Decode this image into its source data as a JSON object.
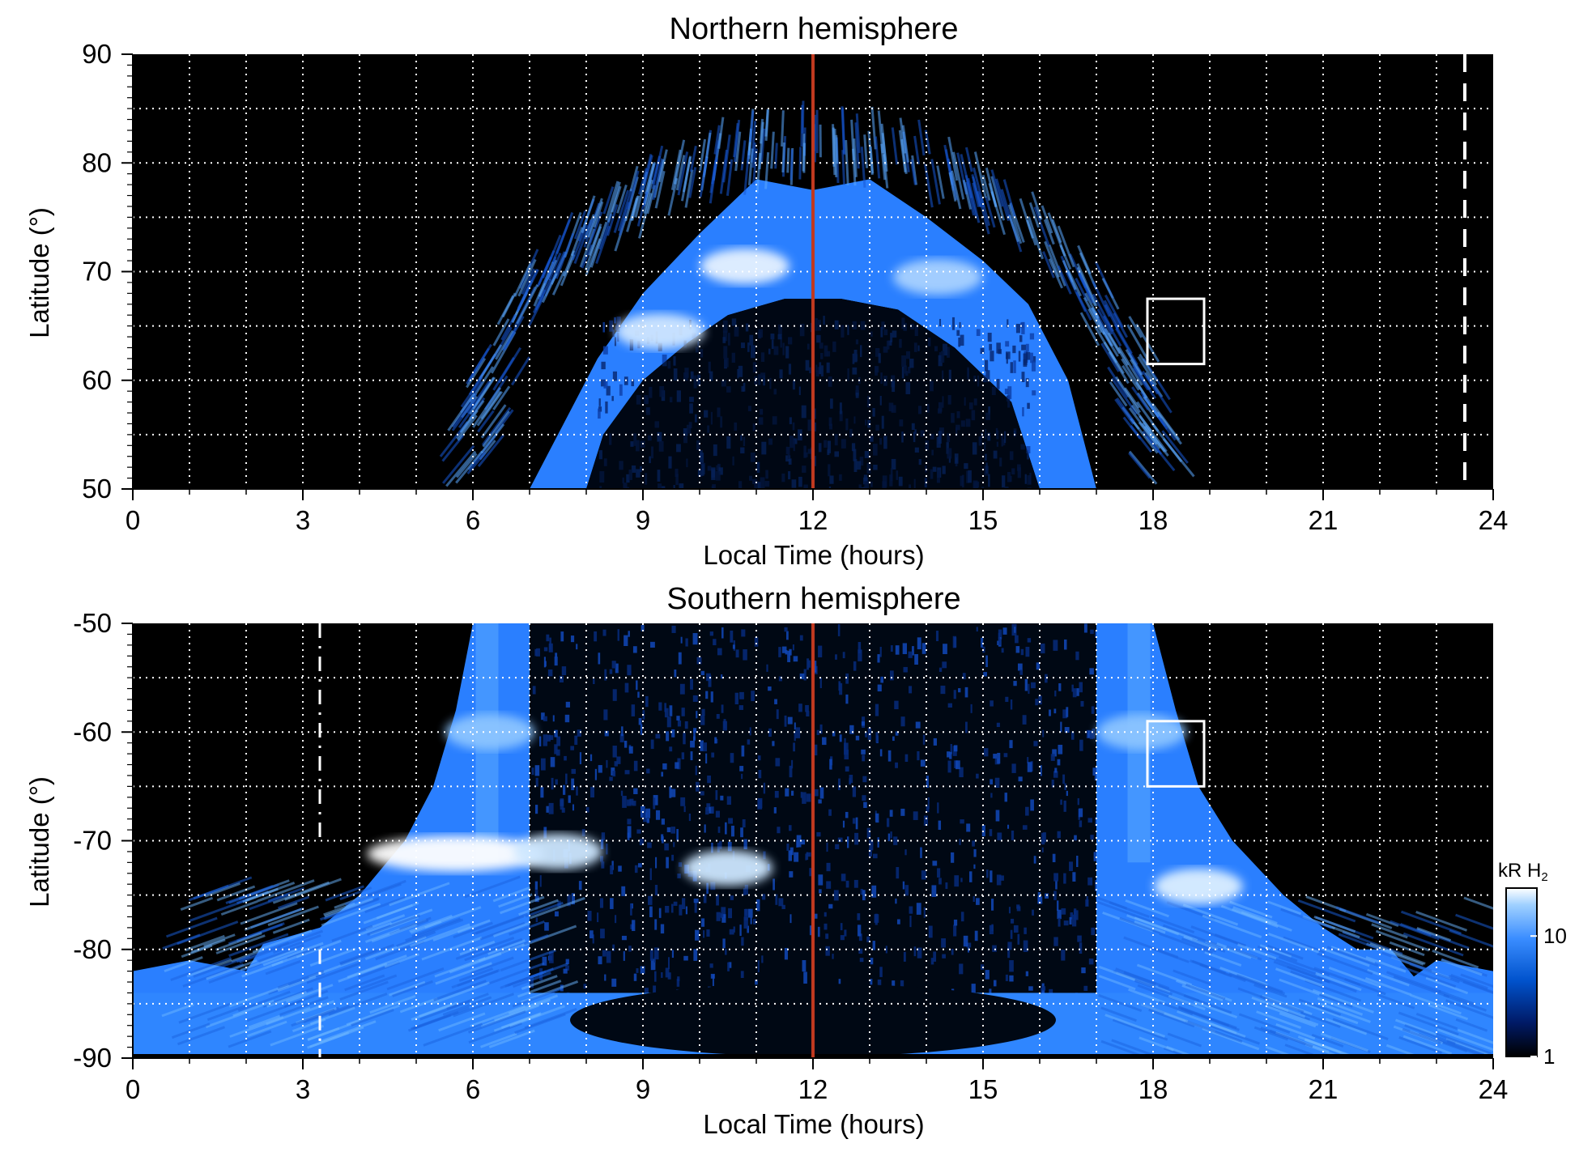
{
  "chart_data": [
    {
      "type": "heatmap",
      "title": "Northern hemisphere",
      "xlabel": "Local Time (hours)",
      "ylabel": "Latitude (°)",
      "xlim": [
        0,
        24
      ],
      "ylim": [
        50,
        90
      ],
      "xticks": [
        "0",
        "3",
        "6",
        "9",
        "12",
        "15",
        "18",
        "21",
        "24"
      ],
      "yticks": [
        "50",
        "60",
        "70",
        "80",
        "90"
      ],
      "grid": true,
      "aurora": {
        "outer_boundary": [
          [
            7.0,
            50
          ],
          [
            7.5,
            55
          ],
          [
            8.2,
            62
          ],
          [
            9.0,
            68
          ],
          [
            10.0,
            73.5
          ],
          [
            11.0,
            78.5
          ],
          [
            12.0,
            77.5
          ],
          [
            13.0,
            78.5
          ],
          [
            14.0,
            75
          ],
          [
            15.0,
            71
          ],
          [
            15.8,
            67
          ],
          [
            16.5,
            60
          ],
          [
            17.0,
            50
          ]
        ],
        "inner_boundary": [
          [
            8.0,
            50
          ],
          [
            8.3,
            55
          ],
          [
            9.0,
            60
          ],
          [
            9.8,
            63.5
          ],
          [
            10.5,
            66
          ],
          [
            11.5,
            67.5
          ],
          [
            12.5,
            67.5
          ],
          [
            13.5,
            66.5
          ],
          [
            14.5,
            63
          ],
          [
            15.5,
            58
          ],
          [
            16.0,
            50
          ]
        ],
        "bright_spots": [
          [
            10.8,
            70.5,
            "#e6f2ff"
          ],
          [
            9.3,
            64.5,
            "#cfe6ff"
          ],
          [
            14.2,
            69.5,
            "#a9d2ff"
          ]
        ]
      },
      "noon_line_x": 12,
      "dashed_line_x": 23.5,
      "box": {
        "x0": 17.9,
        "x1": 18.9,
        "y0": 61.5,
        "y1": 67.5
      }
    },
    {
      "type": "heatmap",
      "title": "Southern hemisphere",
      "xlabel": "Local Time (hours)",
      "ylabel": "Latitude (°)",
      "xlim": [
        0,
        24
      ],
      "ylim": [
        -90,
        -50
      ],
      "xticks": [
        "0",
        "3",
        "6",
        "9",
        "12",
        "15",
        "18",
        "21",
        "24"
      ],
      "yticks": [
        "-90",
        "-80",
        "-70",
        "-60",
        "-50"
      ],
      "grid": true,
      "aurora": {
        "outer_boundary": [
          [
            0.0,
            -82
          ],
          [
            1.0,
            -81
          ],
          [
            2.0,
            -82
          ],
          [
            2.3,
            -79.5
          ],
          [
            3.3,
            -78
          ],
          [
            4.0,
            -75
          ],
          [
            4.8,
            -70
          ],
          [
            5.3,
            -65
          ],
          [
            5.7,
            -58
          ],
          [
            6.0,
            -50
          ],
          [
            7.0,
            -50
          ],
          [
            7.0,
            -85
          ],
          [
            17.0,
            -85
          ],
          [
            17.0,
            -50
          ],
          [
            18.0,
            -50
          ],
          [
            18.4,
            -58
          ],
          [
            18.8,
            -65
          ],
          [
            19.4,
            -70
          ],
          [
            20.3,
            -75
          ],
          [
            21.0,
            -78
          ],
          [
            21.6,
            -80
          ],
          [
            22.2,
            -80
          ],
          [
            22.6,
            -82.5
          ],
          [
            23.0,
            -81
          ],
          [
            24.0,
            -82
          ]
        ],
        "bright_spots": [
          [
            5.7,
            -71.2,
            "#ffffff"
          ],
          [
            7.5,
            -71.0,
            "#cde7ff"
          ],
          [
            10.5,
            -72.5,
            "#cde7ff"
          ],
          [
            18.8,
            -74.2,
            "#dcefff"
          ],
          [
            6.3,
            -60,
            "#8cc5ff"
          ],
          [
            17.8,
            -60,
            "#8cc5ff"
          ]
        ]
      },
      "noon_line_x": 12,
      "dashed_line_x": 3.3,
      "box": {
        "x0": 17.9,
        "x1": 18.9,
        "y0": -65,
        "y1": -59
      }
    }
  ],
  "colorbar": {
    "label": "kR H",
    "label_sub": "2",
    "ticks": [
      "1",
      "10"
    ],
    "scale": "log",
    "range": [
      1,
      25
    ],
    "colors": [
      "#000000",
      "#001a66",
      "#0052cc",
      "#3a8dff",
      "#9fd0ff",
      "#ffffff"
    ]
  },
  "colors": {
    "background": "#000000",
    "grid": "#ffffff",
    "noon_line": "#c0391f",
    "aurora_mid": "#2a7fff",
    "aurora_dark": "#0a2c8a"
  }
}
